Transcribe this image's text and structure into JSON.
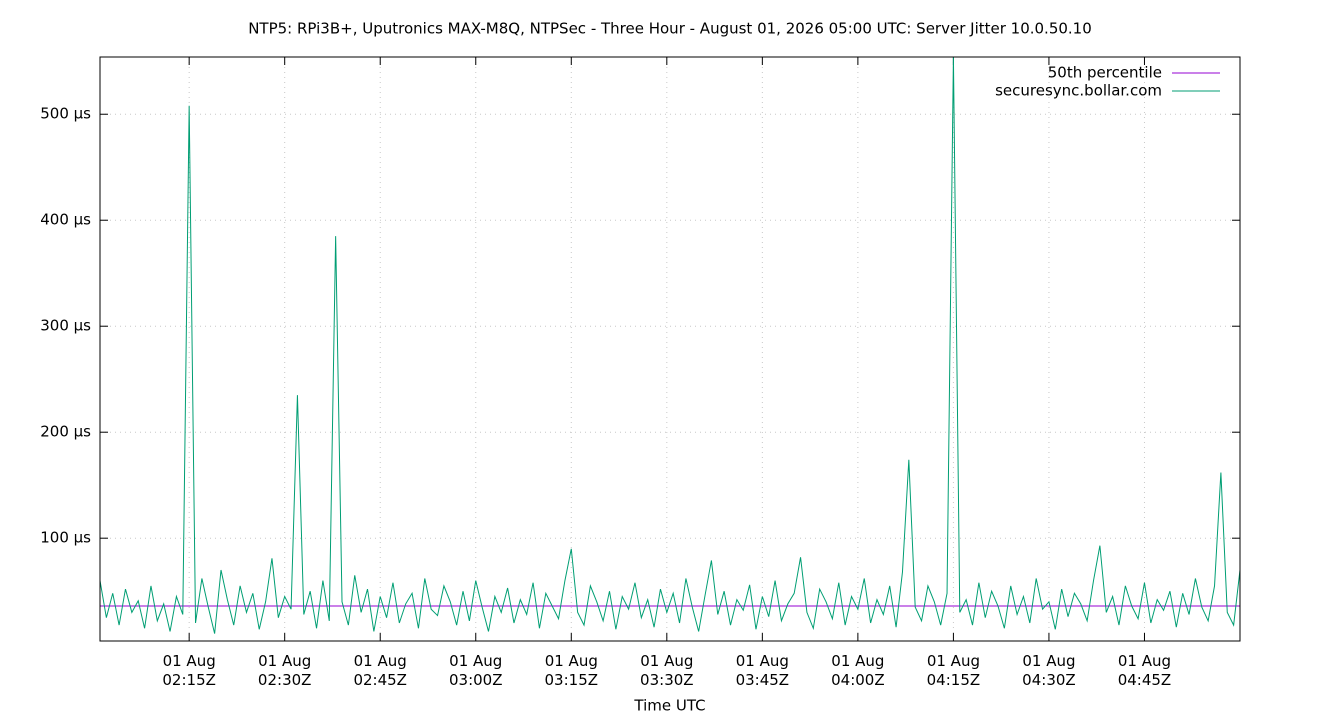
{
  "chart_data": {
    "type": "line",
    "title": "NTP5: RPi3B+, Uputronics MAX-M8Q, NTPSec - Three Hour - August 01, 2026 05:00 UTC: Server Jitter 10.0.50.10",
    "x_label": "Time UTC",
    "x": [
      "02:01",
      "02:02",
      "02:03",
      "02:04",
      "02:05",
      "02:06",
      "02:07",
      "02:08",
      "02:09",
      "02:10",
      "02:11",
      "02:12",
      "02:13",
      "02:14",
      "02:15",
      "02:16",
      "02:17",
      "02:18",
      "02:19",
      "02:20",
      "02:21",
      "02:22",
      "02:23",
      "02:24",
      "02:25",
      "02:26",
      "02:27",
      "02:28",
      "02:29",
      "02:30",
      "02:31",
      "02:32",
      "02:33",
      "02:34",
      "02:35",
      "02:36",
      "02:37",
      "02:38",
      "02:39",
      "02:40",
      "02:41",
      "02:42",
      "02:43",
      "02:44",
      "02:45",
      "02:46",
      "02:47",
      "02:48",
      "02:49",
      "02:50",
      "02:51",
      "02:52",
      "02:53",
      "02:54",
      "02:55",
      "02:56",
      "02:57",
      "02:58",
      "02:59",
      "03:00",
      "03:01",
      "03:02",
      "03:03",
      "03:04",
      "03:05",
      "03:06",
      "03:07",
      "03:08",
      "03:09",
      "03:10",
      "03:11",
      "03:12",
      "03:13",
      "03:14",
      "03:15",
      "03:16",
      "03:17",
      "03:18",
      "03:19",
      "03:20",
      "03:21",
      "03:22",
      "03:23",
      "03:24",
      "03:25",
      "03:26",
      "03:27",
      "03:28",
      "03:29",
      "03:30",
      "03:31",
      "03:32",
      "03:33",
      "03:34",
      "03:35",
      "03:36",
      "03:37",
      "03:38",
      "03:39",
      "03:40",
      "03:41",
      "03:42",
      "03:43",
      "03:44",
      "03:45",
      "03:46",
      "03:47",
      "03:48",
      "03:49",
      "03:50",
      "03:51",
      "03:52",
      "03:53",
      "03:54",
      "03:55",
      "03:56",
      "03:57",
      "03:58",
      "03:59",
      "04:00",
      "04:01",
      "04:02",
      "04:03",
      "04:04",
      "04:05",
      "04:06",
      "04:07",
      "04:08",
      "04:09",
      "04:10",
      "04:11",
      "04:12",
      "04:13",
      "04:14",
      "04:15",
      "04:16",
      "04:17",
      "04:18",
      "04:19",
      "04:20",
      "04:21",
      "04:22",
      "04:23",
      "04:24",
      "04:25",
      "04:26",
      "04:27",
      "04:28",
      "04:29",
      "04:30",
      "04:31",
      "04:32",
      "04:33",
      "04:34",
      "04:35",
      "04:36",
      "04:37",
      "04:38",
      "04:39",
      "04:40",
      "04:41",
      "04:42",
      "04:43",
      "04:44",
      "04:45",
      "04:46",
      "04:47",
      "04:48",
      "04:49",
      "04:50",
      "04:51",
      "04:52",
      "04:53",
      "04:54",
      "04:55",
      "04:56",
      "04:57",
      "04:58",
      "04:59",
      "05:00"
    ],
    "series": [
      {
        "name": "50th percentile",
        "color": "#9400d3",
        "x": [
          "02:01",
          "05:00"
        ],
        "values": [
          36,
          36
        ]
      },
      {
        "name": "securesync.bollar.com",
        "color": "#009e73",
        "values": [
          60,
          25,
          48,
          18,
          52,
          30,
          41,
          15,
          55,
          22,
          38,
          12,
          45,
          28,
          508,
          20,
          62,
          35,
          10,
          70,
          42,
          18,
          55,
          30,
          48,
          14,
          40,
          81,
          25,
          45,
          33,
          235,
          28,
          50,
          15,
          60,
          22,
          385,
          40,
          18,
          65,
          30,
          52,
          12,
          45,
          25,
          58,
          20,
          38,
          48,
          15,
          62,
          33,
          27,
          55,
          40,
          18,
          50,
          22,
          60,
          35,
          12,
          45,
          30,
          53,
          20,
          42,
          28,
          58,
          15,
          48,
          36,
          24,
          60,
          90,
          30,
          18,
          55,
          40,
          22,
          50,
          14,
          45,
          33,
          58,
          25,
          42,
          16,
          52,
          30,
          48,
          20,
          62,
          35,
          12,
          46,
          79,
          28,
          50,
          18,
          42,
          32,
          56,
          14,
          45,
          26,
          60,
          22,
          38,
          48,
          82,
          30,
          15,
          52,
          40,
          24,
          58,
          18,
          45,
          33,
          62,
          20,
          42,
          28,
          55,
          16,
          68,
          174,
          35,
          22,
          55,
          40,
          18,
          48,
          554,
          30,
          42,
          18,
          58,
          25,
          50,
          36,
          15,
          55,
          28,
          45,
          20,
          62,
          33,
          40,
          14,
          52,
          26,
          48,
          38,
          22,
          60,
          93,
          30,
          45,
          18,
          55,
          36,
          24,
          58,
          20,
          42,
          32,
          50,
          16,
          48,
          28,
          62,
          35,
          22,
          55,
          162,
          30,
          18,
          70
        ]
      }
    ],
    "xlim": [
      "02:01",
      "05:00"
    ],
    "xticks": [
      {
        "value": "02:15",
        "label": "01 Aug\n02:15Z"
      },
      {
        "value": "02:30",
        "label": "01 Aug\n02:30Z"
      },
      {
        "value": "02:45",
        "label": "01 Aug\n02:45Z"
      },
      {
        "value": "03:00",
        "label": "01 Aug\n03:00Z"
      },
      {
        "value": "03:15",
        "label": "01 Aug\n03:15Z"
      },
      {
        "value": "03:30",
        "label": "01 Aug\n03:30Z"
      },
      {
        "value": "03:45",
        "label": "01 Aug\n03:45Z"
      },
      {
        "value": "04:00",
        "label": "01 Aug\n04:00Z"
      },
      {
        "value": "04:15",
        "label": "01 Aug\n04:15Z"
      },
      {
        "value": "04:30",
        "label": "01 Aug\n04:30Z"
      },
      {
        "value": "04:45",
        "label": "01 Aug\n04:45Z"
      }
    ],
    "ylim": [
      3,
      554
    ],
    "yticks": [
      {
        "value": 100,
        "label": "100 µs"
      },
      {
        "value": 200,
        "label": "200 µs"
      },
      {
        "value": 300,
        "label": "300 µs"
      },
      {
        "value": 400,
        "label": "400 µs"
      },
      {
        "value": 500,
        "label": "500 µs"
      }
    ],
    "grid": true,
    "legend": "top-right"
  }
}
